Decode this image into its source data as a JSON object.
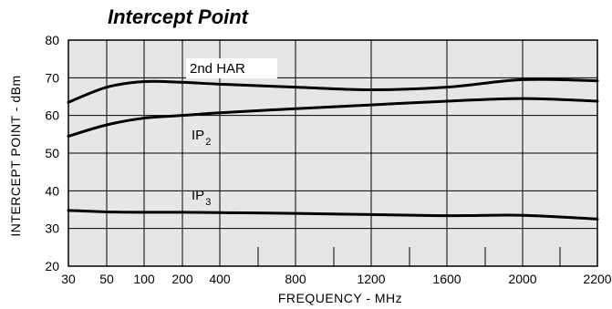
{
  "chart_data": {
    "type": "line",
    "title": "Intercept Point",
    "xlabel": "FREQUENCY - MHz",
    "ylabel": "INTERCEPT POINT - dBm",
    "ylim": [
      20,
      80
    ],
    "y_ticks": [
      20,
      30,
      40,
      50,
      60,
      70,
      80
    ],
    "x_categories": [
      "30",
      "50",
      "100",
      "200",
      "400",
      "800",
      "1200",
      "1600",
      "2000",
      "2200"
    ],
    "grid": true,
    "series": [
      {
        "name": "2nd HAR",
        "label_main": "2nd HAR",
        "label_sub": "",
        "points": [
          {
            "x": "30",
            "y": 63.5
          },
          {
            "x": "50",
            "y": 67.5
          },
          {
            "x": "100",
            "y": 69.0
          },
          {
            "x": "200",
            "y": 68.8
          },
          {
            "x": "400",
            "y": 68.3
          },
          {
            "x": "800",
            "y": 67.5
          },
          {
            "x": "1200",
            "y": 66.8
          },
          {
            "x": "1600",
            "y": 67.5
          },
          {
            "x": "2000",
            "y": 69.5
          },
          {
            "x": "2200",
            "y": 69.2
          }
        ]
      },
      {
        "name": "IP2",
        "label_main": "IP",
        "label_sub": "2",
        "points": [
          {
            "x": "30",
            "y": 54.5
          },
          {
            "x": "50",
            "y": 57.5
          },
          {
            "x": "100",
            "y": 59.3
          },
          {
            "x": "200",
            "y": 60.0
          },
          {
            "x": "400",
            "y": 60.7
          },
          {
            "x": "800",
            "y": 61.8
          },
          {
            "x": "1200",
            "y": 62.8
          },
          {
            "x": "1600",
            "y": 63.8
          },
          {
            "x": "2000",
            "y": 64.5
          },
          {
            "x": "2200",
            "y": 63.8
          }
        ]
      },
      {
        "name": "IP3",
        "label_main": "IP",
        "label_sub": "3",
        "points": [
          {
            "x": "30",
            "y": 34.8
          },
          {
            "x": "50",
            "y": 34.4
          },
          {
            "x": "100",
            "y": 34.3
          },
          {
            "x": "200",
            "y": 34.3
          },
          {
            "x": "400",
            "y": 34.2
          },
          {
            "x": "800",
            "y": 34.0
          },
          {
            "x": "1200",
            "y": 33.7
          },
          {
            "x": "1600",
            "y": 33.4
          },
          {
            "x": "2000",
            "y": 33.5
          },
          {
            "x": "2200",
            "y": 32.5
          }
        ]
      }
    ]
  }
}
